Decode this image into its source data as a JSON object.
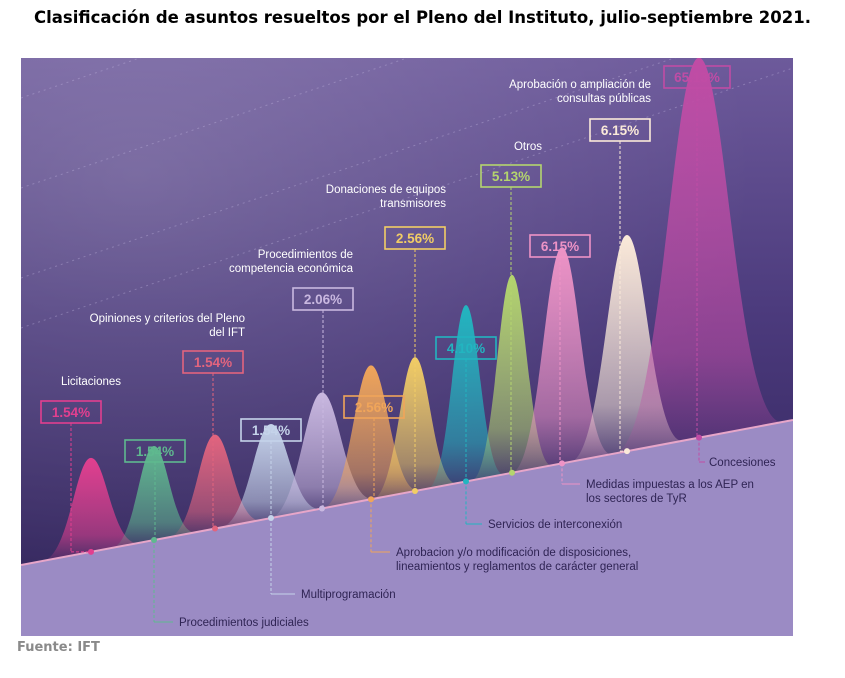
{
  "header": {
    "title": "Clasificación de asuntos resueltos por el Pleno del Instituto, julio-septiembre 2021."
  },
  "footer": {
    "source": "Fuente: IFT"
  },
  "colors": {
    "background_top": "#6d5a9b",
    "background_bottom": "#2c1f55",
    "ground": "#9b8bc4",
    "baseline": "#e7a6c9"
  },
  "chart_data": {
    "type": "area",
    "title": "Clasificación de asuntos resueltos por el Pleno del Instituto, julio-septiembre 2021.",
    "unit": "%",
    "categories": [
      "Licitaciones",
      "Procedimientos judiciales",
      "Opiniones y criterios del Pleno del IFT",
      "Multiprogramación",
      "Procedimientos de competencia económica",
      "Aprobacion y/o modificación de disposiciones, lineamientos y reglamentos de carácter general",
      "Donaciones de equipos transmisores",
      "Servicios de interconexión",
      "Otros",
      "Medidas impuestas a los AEP en los sectores de TyR",
      "Aprobación o ampliación de consultas públicas",
      "Concesiones"
    ],
    "values": [
      1.54,
      1.54,
      1.54,
      1.54,
      2.06,
      2.56,
      2.56,
      4.1,
      5.13,
      6.15,
      6.15,
      65.13
    ],
    "value_labels": [
      "1.54%",
      "1.54%",
      "1.54%",
      "1.54%",
      "2.06%",
      "2.56%",
      "2.56%",
      "4.10%",
      "5.13%",
      "6.15%",
      "6.15%",
      "65.13%"
    ],
    "series_colors": [
      "#e23f8f",
      "#5fb98f",
      "#e2647e",
      "#c5d3ea",
      "#c9b8e0",
      "#f0a55a",
      "#f2cd65",
      "#22b5c0",
      "#b4d56e",
      "#ee93c6",
      "#fbead9",
      "#c04ca5"
    ],
    "legend": "none",
    "grid": false
  }
}
